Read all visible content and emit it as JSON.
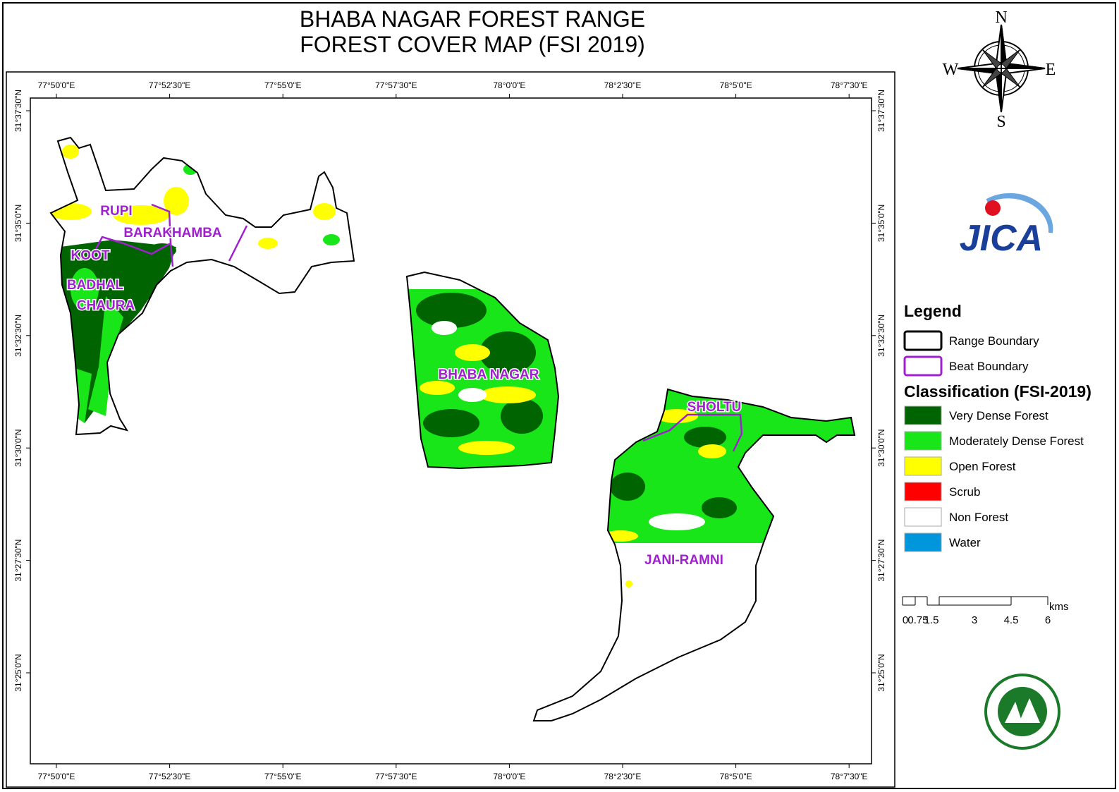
{
  "title": [
    "BHABA NAGAR FOREST RANGE",
    "FOREST COVER MAP (FSI 2019)"
  ],
  "longitudes": [
    "77°50'0\"E",
    "77°52'30\"E",
    "77°55'0\"E",
    "77°57'30\"E",
    "78°0'0\"E",
    "78°2'30\"E",
    "78°5'0\"E",
    "78°7'30\"E"
  ],
  "latitudes": [
    "31°37'30\"N",
    "31°35'0\"N",
    "31°32'30\"N",
    "31°30'0\"N",
    "31°27'30\"N",
    "31°25'0\"N"
  ],
  "beats": [
    "RUPI",
    "BARAKHAMBA",
    "KOOT",
    "BADHAL",
    "CHAURA",
    "BHABA NAGAR",
    "SHOLTU",
    "JANI-RAMNI"
  ],
  "compass": {
    "n": "N",
    "e": "E",
    "s": "S",
    "w": "W"
  },
  "logo": "JICA",
  "legend": {
    "title": "Legend",
    "boundaries": [
      {
        "label": "Range Boundary",
        "color": "#000000"
      },
      {
        "label": "Beat Boundary",
        "color": "#a020d0"
      }
    ],
    "classification_title": "Classification (FSI-2019)",
    "classes": [
      {
        "label": "Very Dense Forest",
        "color": "#006400"
      },
      {
        "label": "Moderately Dense Forest",
        "color": "#19e619"
      },
      {
        "label": "Open Forest",
        "color": "#ffff00"
      },
      {
        "label": "Scrub",
        "color": "#ff0000"
      },
      {
        "label": "Non Forest",
        "color": "#ffffff"
      },
      {
        "label": "Water",
        "color": "#0096dc"
      }
    ]
  },
  "scale_bar": {
    "labels": [
      "0",
      "0.75",
      "1.5",
      "3",
      "4.5",
      "6"
    ],
    "unit": "kms"
  }
}
